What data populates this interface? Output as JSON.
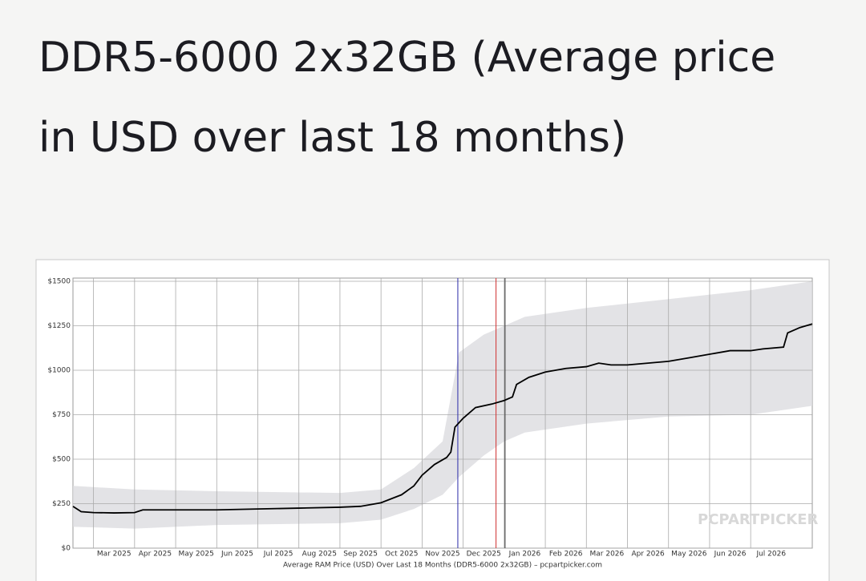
{
  "heading": "DDR5-6000 2x32GB (Average price in USD over last 18 months)",
  "chart_data": {
    "type": "line",
    "caption": "Average RAM Price (USD) Over Last 18 Months (DDR5-6000 2x32GB) – pcpartpicker.com",
    "watermark": "PCPARTPICKER",
    "xlim": [
      0.5,
      18.5
    ],
    "xticks": [
      {
        "value": 1,
        "label": "Mar 2025"
      },
      {
        "value": 2,
        "label": "Apr 2025"
      },
      {
        "value": 3,
        "label": "May 2025"
      },
      {
        "value": 4,
        "label": "Jun 2025"
      },
      {
        "value": 5,
        "label": "Jul 2025"
      },
      {
        "value": 6,
        "label": "Aug 2025"
      },
      {
        "value": 7,
        "label": "Sep 2025"
      },
      {
        "value": 8,
        "label": "Oct 2025"
      },
      {
        "value": 9,
        "label": "Nov 2025"
      },
      {
        "value": 10,
        "label": "Dec 2025"
      },
      {
        "value": 11,
        "label": "Jan 2026"
      },
      {
        "value": 12,
        "label": "Feb 2026"
      },
      {
        "value": 13,
        "label": "Mar 2026"
      },
      {
        "value": 14,
        "label": "Apr 2026"
      },
      {
        "value": 15,
        "label": "May 2026"
      },
      {
        "value": 16,
        "label": "Jun 2026"
      },
      {
        "value": 17,
        "label": "Jul 2026"
      }
    ],
    "ylim": [
      0,
      1500
    ],
    "yticks": [
      {
        "value": 0,
        "label": "$0"
      },
      {
        "value": 250,
        "label": "$250"
      },
      {
        "value": 500,
        "label": "$500"
      },
      {
        "value": 750,
        "label": "$750"
      },
      {
        "value": 1000,
        "label": "$1000"
      },
      {
        "value": 1250,
        "label": "$1250"
      },
      {
        "value": 1500,
        "label": "$1500"
      }
    ],
    "grid": true,
    "band": {
      "color": "#dcdce0",
      "x": [
        0.5,
        2,
        4,
        7,
        8,
        8.8,
        9.5,
        9.9,
        10.5,
        11,
        11.5,
        13,
        15,
        17,
        18.5
      ],
      "low": [
        120,
        110,
        130,
        140,
        160,
        220,
        300,
        400,
        520,
        600,
        650,
        700,
        740,
        750,
        800
      ],
      "high": [
        350,
        330,
        320,
        310,
        330,
        450,
        600,
        1100,
        1200,
        1250,
        1300,
        1350,
        1400,
        1450,
        1500
      ]
    },
    "vlines": [
      {
        "x": 9.87,
        "color": "#2a2aa8"
      },
      {
        "x": 10.8,
        "color": "#d03030"
      },
      {
        "x": 11.02,
        "color": "#333333"
      }
    ],
    "x": [
      0.5,
      0.7,
      1.0,
      1.5,
      2.0,
      2.2,
      3,
      4,
      5,
      6,
      7,
      7.5,
      8,
      8.5,
      8.8,
      9.0,
      9.3,
      9.6,
      9.7,
      9.8,
      10.0,
      10.3,
      10.7,
      11.0,
      11.2,
      11.3,
      11.6,
      12.0,
      12.5,
      13,
      13.3,
      13.6,
      14.0,
      14.5,
      15.0,
      15.5,
      16.0,
      16.5,
      17.0,
      17.3,
      17.8,
      17.9,
      18.2,
      18.5
    ],
    "series": [
      {
        "color": "#000000",
        "values": [
          235,
          205,
          200,
          198,
          200,
          215,
          215,
          215,
          220,
          225,
          230,
          235,
          255,
          300,
          350,
          410,
          470,
          510,
          540,
          680,
          730,
          790,
          810,
          830,
          850,
          920,
          960,
          990,
          1010,
          1020,
          1040,
          1030,
          1030,
          1040,
          1050,
          1070,
          1090,
          1110,
          1110,
          1120,
          1130,
          1210,
          1240,
          1260
        ]
      }
    ]
  }
}
